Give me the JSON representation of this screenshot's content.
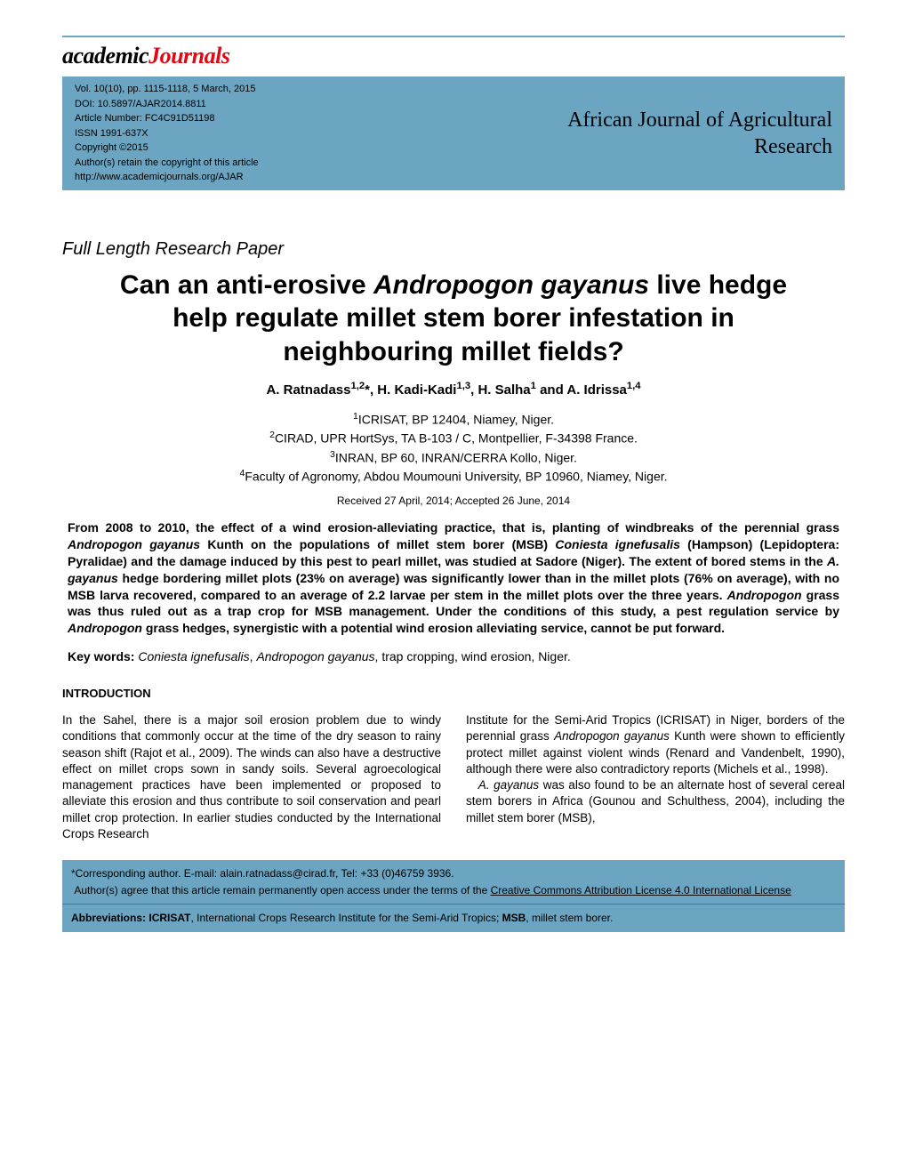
{
  "logo": {
    "academic": "academic",
    "journals": "Journals"
  },
  "meta": {
    "vol_line": "Vol. 10(10), pp. 1115-1118, 5 March, 2015",
    "doi_line": "DOI: 10.5897/AJAR2014.8811",
    "article_number": "Article Number: FC4C91D51198",
    "issn": "ISSN 1991-637X",
    "copyright": "Copyright ©2015",
    "retain": "Author(s) retain the copyright of this article",
    "url": "http://www.academicjournals.org/AJAR"
  },
  "journal_name_l1": "African Journal of Agricultural",
  "journal_name_l2": "Research",
  "paper_type": "Full Length Research Paper",
  "title_l1a": "Can an anti-erosive ",
  "title_l1b_ital": "Andropogon gayanus",
  "title_l1c": " live hedge",
  "title_l2": "help regulate millet stem borer infestation in",
  "title_l3": "neighbouring millet fields?",
  "authors_html": "A. Ratnadass<sup>1,2</sup>*, H. Kadi-Kadi<sup>1,3</sup>, H. Salha<sup>1</sup> and A. Idrissa<sup>1,4</sup>",
  "affils": {
    "a1": "<sup>1</sup>ICRISAT, BP 12404, Niamey, Niger.",
    "a2": "<sup>2</sup>CIRAD, UPR HortSys, TA B-103 / C, Montpellier, F-34398 France.",
    "a3": "<sup>3</sup>INRAN, BP 60, INRAN/CERRA Kollo, Niger.",
    "a4": "<sup>4</sup>Faculty of Agronomy, Abdou Moumouni University, BP 10960, Niamey, Niger."
  },
  "dates": "Received 27 April, 2014; Accepted 26 June, 2014",
  "abstract_html": "From 2008 to 2010, the effect of a wind erosion-alleviating practice, that is, planting of windbreaks of the perennial grass <span class=\"ital\">Andropogon gayanus</span> Kunth on the populations of millet stem borer (MSB) <span class=\"ital\">Coniesta ignefusalis</span> (Hampson) (Lepidoptera: Pyralidae) and the damage induced by this pest to pearl millet, was studied at Sadore (Niger). The extent of bored stems in the <span class=\"ital\">A. gayanus</span> hedge bordering millet plots (23% on average) was significantly lower than in the millet plots (76% on average), with no MSB larva recovered, compared to an average of 2.2 larvae per stem in the millet plots over the three years. <span class=\"ital\">Andropogon</span> grass was thus ruled out as a trap crop for MSB management. Under the conditions of this study, a pest regulation service by <span class=\"ital\">Andropogon</span> grass hedges, synergistic with a potential wind erosion alleviating service, cannot be put forward.",
  "keywords_label": "Key words:",
  "keywords_html": "<span class=\"ital\">Coniesta ignefusalis</span>, <span class=\"ital\">Andropogon gayanus</span>, trap cropping, wind erosion, Niger.",
  "intro_heading": "INTRODUCTION",
  "intro_col1": "In the Sahel, there is a major soil erosion problem due to windy conditions that commonly occur at the time of the dry season to rainy season shift (Rajot et al., 2009). The winds can also have a destructive effect on millet crops sown in sandy soils. Several agroecological management practices have been implemented or proposed to alleviate this erosion and thus contribute to soil conservation and pearl millet crop protection. In earlier studies conducted by the International Crops Research",
  "intro_col2_html": "Institute for the Semi-Arid Tropics (ICRISAT) in Niger, borders of the perennial grass <span class=\"ital\">Andropogon gayanus</span> Kunth were shown to efficiently protect millet against violent winds (Renard and Vandenbelt, 1990), although there were also contradictory reports (Michels et al., 1998).<br>&nbsp;&nbsp;&nbsp;<span class=\"ital\">A. gayanus</span> was also found to be an alternate host of several cereal stem borers in Africa (Gounou and Schulthess, 2004), including the millet stem borer (MSB),",
  "footer": {
    "corr": "*Corresponding author. E-mail: alain.ratnadass@cirad.fr, Tel: +33 (0)46759 3936.",
    "license_pre": "Author(s) agree that this article remain permanently open access under the terms of the ",
    "license_link": "Creative Commons Attribution License 4.0 International License",
    "abbrev_label": "Abbreviations:",
    "abbrev_html": " <b>ICRISAT</b>, International Crops Research Institute for the Semi-Arid Tropics; <b>MSB</b>, millet stem borer."
  }
}
